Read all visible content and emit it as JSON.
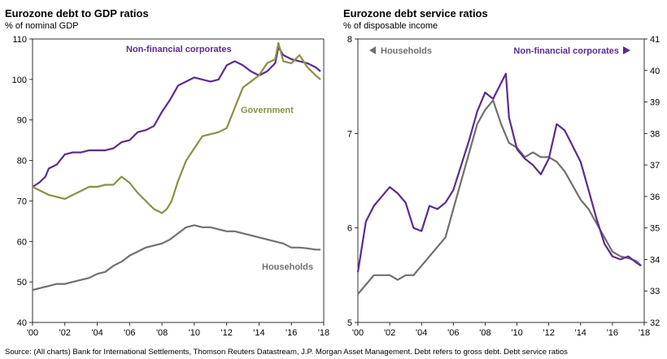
{
  "chart_data": [
    {
      "type": "line",
      "title": "Eurozone debt to GDP ratios",
      "subtitle": "% of nominal GDP",
      "x_ticks": [
        "'00",
        "'02",
        "'04",
        "'06",
        "'08",
        "'10",
        "'12",
        "'14",
        "'16",
        "'18"
      ],
      "xlim": [
        2000,
        2018
      ],
      "ylim": [
        40,
        110
      ],
      "y_ticks": [
        "40",
        "50",
        "60",
        "70",
        "80",
        "90",
        "100",
        "110"
      ],
      "series": [
        {
          "name": "Non-financial corporates",
          "color": "#5b2c8f",
          "x": [
            2000.0,
            2000.4,
            2000.8,
            2001.0,
            2001.5,
            2002.0,
            2002.5,
            2003.0,
            2003.5,
            2004.0,
            2004.5,
            2005.0,
            2005.5,
            2006.0,
            2006.5,
            2007.0,
            2007.5,
            2008.0,
            2008.5,
            2009.0,
            2009.5,
            2010.0,
            2010.5,
            2011.0,
            2011.5,
            2012.0,
            2012.5,
            2013.0,
            2013.5,
            2014.0,
            2014.5,
            2015.0,
            2015.2,
            2015.5,
            2016.0,
            2016.5,
            2017.0,
            2017.5,
            2017.8
          ],
          "values": [
            73.5,
            74.5,
            76,
            78,
            79,
            81.5,
            82,
            82,
            82.5,
            82.5,
            82.5,
            83,
            84.5,
            85,
            87,
            87.5,
            88.5,
            92,
            95,
            98.5,
            99.5,
            100.5,
            100,
            99.5,
            100,
            103.5,
            104.5,
            103.5,
            102,
            101,
            102,
            104,
            108,
            106,
            105,
            104.5,
            104,
            103,
            102
          ]
        },
        {
          "name": "Government",
          "color": "#8c8f44",
          "x": [
            2000.0,
            2000.5,
            2001.0,
            2001.5,
            2002.0,
            2002.5,
            2003.0,
            2003.5,
            2004.0,
            2004.5,
            2005.0,
            2005.5,
            2006.0,
            2006.5,
            2007.0,
            2007.5,
            2008.0,
            2008.3,
            2008.6,
            2009.0,
            2009.5,
            2010.0,
            2010.5,
            2011.0,
            2011.5,
            2012.0,
            2012.5,
            2013.0,
            2013.5,
            2014.0,
            2014.5,
            2015.0,
            2015.2,
            2015.5,
            2016.0,
            2016.5,
            2017.0,
            2017.5,
            2017.8
          ],
          "values": [
            73.5,
            72.5,
            71.5,
            71,
            70.5,
            71.5,
            72.5,
            73.5,
            73.5,
            74,
            74,
            76,
            74.5,
            72,
            70,
            68,
            67,
            68,
            70,
            75,
            80,
            83,
            86,
            86.5,
            87,
            88,
            93,
            98,
            99.5,
            101,
            104,
            105,
            109,
            104.5,
            104,
            106,
            103,
            101,
            100
          ]
        },
        {
          "name": "Households",
          "color": "#707070",
          "x": [
            2000.0,
            2000.5,
            2001.0,
            2001.5,
            2002.0,
            2002.5,
            2003.0,
            2003.5,
            2004.0,
            2004.5,
            2005.0,
            2005.5,
            2006.0,
            2006.5,
            2007.0,
            2007.5,
            2008.0,
            2008.5,
            2009.0,
            2009.5,
            2010.0,
            2010.5,
            2011.0,
            2011.5,
            2012.0,
            2012.5,
            2013.0,
            2013.5,
            2014.0,
            2014.5,
            2015.0,
            2015.5,
            2016.0,
            2016.5,
            2017.0,
            2017.5,
            2017.8
          ],
          "values": [
            48,
            48.5,
            49,
            49.5,
            49.5,
            50,
            50.5,
            51,
            52,
            52.5,
            54,
            55,
            56.5,
            57.5,
            58.5,
            59,
            59.5,
            60.5,
            62,
            63.5,
            64,
            63.5,
            63.5,
            63,
            62.5,
            62.5,
            62,
            61.5,
            61,
            60.5,
            60,
            59.5,
            58.5,
            58.5,
            58.3,
            58,
            58
          ]
        }
      ],
      "labels": [
        "Non-financial corporates",
        "Government",
        "Households"
      ]
    },
    {
      "type": "line",
      "title": "Eurozone debt service ratios",
      "subtitle": "% of disposable income",
      "x_ticks": [
        "'00",
        "'02",
        "'04",
        "'06",
        "'08",
        "'10",
        "'12",
        "'14",
        "'16",
        "'18"
      ],
      "xlim": [
        2000,
        2018
      ],
      "y_left": {
        "lim": [
          5,
          8
        ],
        "ticks": [
          "5",
          "6",
          "7",
          "8"
        ]
      },
      "y_right": {
        "lim": [
          32,
          41
        ],
        "ticks": [
          "32",
          "33",
          "34",
          "35",
          "36",
          "37",
          "38",
          "39",
          "40",
          "41"
        ]
      },
      "legend_left": "Households",
      "legend_right": "Non-financial corporates",
      "series": [
        {
          "name": "Households",
          "axis": "left",
          "color": "#707070",
          "x": [
            2000.0,
            2000.5,
            2001.0,
            2001.5,
            2002.0,
            2002.5,
            2003.0,
            2003.5,
            2004.0,
            2004.5,
            2005.0,
            2005.5,
            2006.0,
            2006.5,
            2007.0,
            2007.5,
            2008.0,
            2008.5,
            2009.0,
            2009.5,
            2010.0,
            2010.5,
            2011.0,
            2011.5,
            2012.0,
            2012.5,
            2013.0,
            2013.5,
            2014.0,
            2014.5,
            2015.0,
            2015.5,
            2016.0,
            2016.5,
            2017.0,
            2017.5,
            2017.8
          ],
          "values": [
            5.3,
            5.4,
            5.5,
            5.5,
            5.5,
            5.45,
            5.5,
            5.5,
            5.6,
            5.7,
            5.8,
            5.9,
            6.2,
            6.5,
            6.8,
            7.1,
            7.25,
            7.35,
            7.1,
            6.9,
            6.85,
            6.75,
            6.8,
            6.75,
            6.75,
            6.7,
            6.6,
            6.45,
            6.3,
            6.2,
            6.05,
            5.9,
            5.75,
            5.7,
            5.68,
            5.65,
            5.6
          ]
        },
        {
          "name": "Non-financial corporates",
          "axis": "right",
          "color": "#5b2c8f",
          "x": [
            2000.0,
            2000.5,
            2001.0,
            2001.5,
            2002.0,
            2002.5,
            2003.0,
            2003.5,
            2004.0,
            2004.5,
            2005.0,
            2005.5,
            2006.0,
            2006.5,
            2007.0,
            2007.5,
            2008.0,
            2008.5,
            2009.0,
            2009.3,
            2009.5,
            2010.0,
            2010.5,
            2011.0,
            2011.5,
            2012.0,
            2012.5,
            2013.0,
            2013.5,
            2014.0,
            2014.5,
            2015.0,
            2015.5,
            2016.0,
            2016.5,
            2017.0,
            2017.5,
            2017.8
          ],
          "values": [
            33.6,
            35.2,
            35.7,
            36.0,
            36.3,
            36.1,
            35.8,
            35.0,
            34.9,
            35.7,
            35.6,
            35.8,
            36.2,
            37.0,
            37.8,
            38.7,
            39.3,
            39.1,
            39.6,
            39.9,
            38.5,
            37.5,
            37.2,
            37.0,
            36.7,
            37.2,
            38.3,
            38.1,
            37.6,
            37.1,
            36.2,
            35.3,
            34.5,
            34.1,
            34.0,
            34.1,
            33.9,
            33.8
          ]
        }
      ]
    }
  ],
  "source": "Source: (All charts) Bank for International Settlements, Thomson Reuters Datastream, J.P. Morgan Asset Management. Debt refers to gross debt. Debt service ratios"
}
